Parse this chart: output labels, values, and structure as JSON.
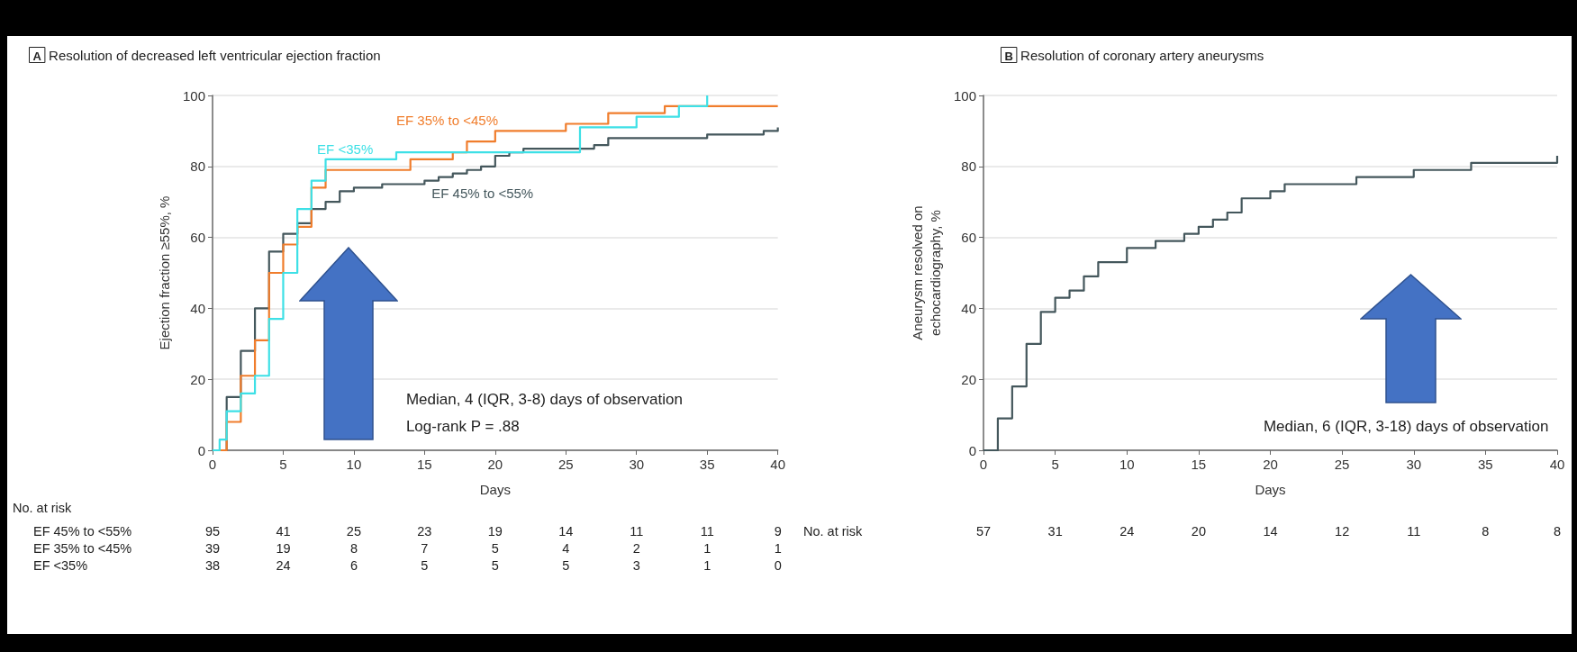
{
  "chart_data": [
    {
      "type": "step",
      "title": "A Resolution of decreased left ventricular ejection fraction",
      "xlabel": "Days",
      "ylabel": "Ejection fraction ≥55%, %",
      "xlim": [
        0,
        40
      ],
      "xticks": [
        0,
        5,
        10,
        15,
        20,
        25,
        30,
        35,
        40
      ],
      "ylim": [
        0,
        100
      ],
      "yticks": [
        0,
        20,
        40,
        60,
        80,
        100
      ],
      "grid": "y",
      "marker": "none",
      "line_style": "solid",
      "series": [
        {
          "name": "EF 45% to <55%",
          "color": "#44575c",
          "x": [
            0,
            1,
            2,
            3,
            4,
            5,
            6,
            7,
            8,
            9,
            10,
            12,
            15,
            16,
            17,
            18,
            19,
            20,
            21,
            22,
            27,
            28,
            35,
            39,
            40
          ],
          "values": [
            0,
            15,
            28,
            40,
            56,
            61,
            64,
            68,
            70,
            73,
            74,
            75,
            76,
            77,
            78,
            79,
            80,
            83,
            84,
            85,
            86,
            88,
            89,
            90,
            91
          ]
        },
        {
          "name": "EF 35% to <45%",
          "color": "#f07d2c",
          "x": [
            0,
            1,
            2,
            3,
            4,
            5,
            6,
            7,
            8,
            14,
            17,
            18,
            20,
            25,
            28,
            32,
            40
          ],
          "values": [
            0,
            8,
            21,
            31,
            50,
            58,
            63,
            74,
            79,
            82,
            84,
            87,
            90,
            92,
            95,
            97,
            97
          ]
        },
        {
          "name": "EF <35%",
          "color": "#3ee0e6",
          "x": [
            0,
            0.5,
            1,
            2,
            3,
            4,
            5,
            6,
            7,
            8,
            13,
            26,
            30,
            33,
            35
          ],
          "values": [
            0,
            3,
            11,
            16,
            21,
            37,
            50,
            68,
            76,
            82,
            84,
            91,
            94,
            97,
            100
          ]
        }
      ],
      "annotations": [
        "Median, 4 (IQR, 3-8) days of observation",
        "Log-rank P = .88",
        "No. at risk",
        "EF 45% to <55%\t95\t41\t25\t23\t19\t14\t11\t11\t9",
        "EF 35% to <45%\t39\t19\t8\t7\t5\t4\t2\t1\t1",
        "EF <35%\t38\t24\t6\t5\t5\t5\t3\t1\t0"
      ]
    },
    {
      "type": "step",
      "title": "B Resolution of coronary artery aneurysms",
      "xlabel": "Days",
      "ylabel": "Aneurysm resolved on\nechocardiography, %",
      "xlim": [
        0,
        40
      ],
      "xticks": [
        0,
        5,
        10,
        15,
        20,
        25,
        30,
        35,
        40
      ],
      "ylim": [
        0,
        100
      ],
      "yticks": [
        0,
        20,
        40,
        60,
        80,
        100
      ],
      "grid": "y",
      "marker": "none",
      "line_style": "solid",
      "series": [
        {
          "color": "#44575c",
          "x": [
            0,
            1,
            2,
            3,
            4,
            5,
            6,
            7,
            8,
            10,
            12,
            14,
            15,
            16,
            17,
            18,
            20,
            21,
            26,
            30,
            34,
            40
          ],
          "values": [
            0,
            9,
            18,
            30,
            39,
            43,
            45,
            49,
            53,
            57,
            59,
            61,
            63,
            65,
            67,
            71,
            73,
            75,
            77,
            79,
            81,
            83
          ]
        }
      ],
      "annotations": [
        "No. at risk\t57\t31\t24\t20\t14\t12\t11\t8\t8",
        "Median, 6 (IQR, 3-18) days of observation"
      ]
    }
  ]
}
